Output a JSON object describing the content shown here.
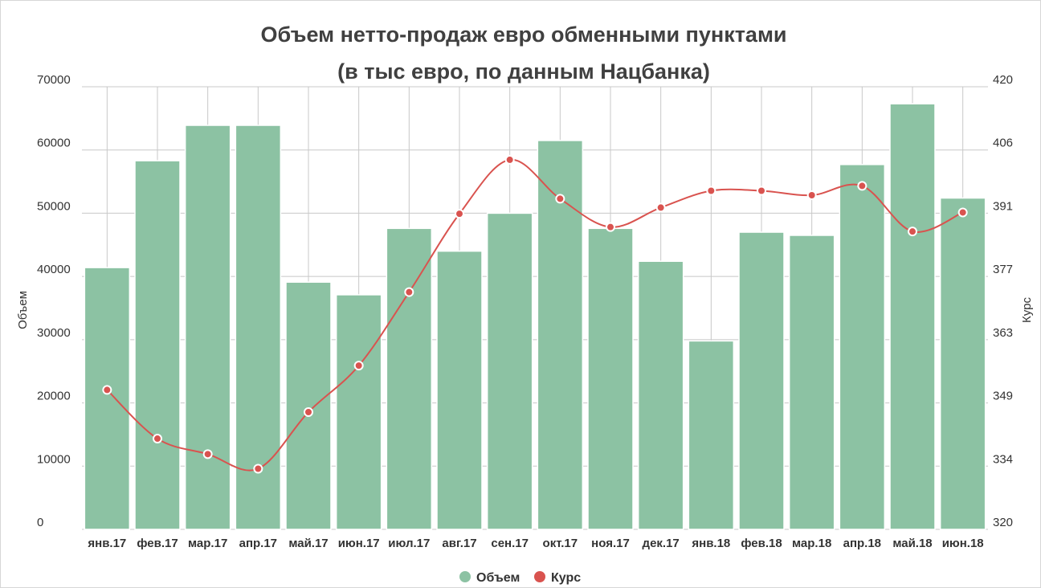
{
  "chart_data": {
    "type": "bar",
    "title_lines": [
      "Объем нетто-продаж евро обменными пунктами",
      "(в тыс евро, по данным Нацбанка)"
    ],
    "categories": [
      "янв.17",
      "фев.17",
      "мар.17",
      "апр.17",
      "май.17",
      "июн.17",
      "июл.17",
      "авг.17",
      "сен.17",
      "окт.17",
      "ноя.17",
      "дек.17",
      "янв.18",
      "фев.18",
      "мар.18",
      "апр.18",
      "май.18",
      "июн.18"
    ],
    "series": [
      {
        "name": "Объем",
        "type": "bar",
        "axis": "left",
        "color": "#8cc2a3",
        "values": [
          41400,
          58300,
          63900,
          63900,
          39100,
          37100,
          47600,
          44000,
          50000,
          61500,
          47600,
          42400,
          29800,
          47000,
          46500,
          57700,
          67300,
          52400
        ]
      },
      {
        "name": "Курс",
        "type": "line",
        "axis": "right",
        "color": "#d9534f",
        "values": [
          351.5,
          340.5,
          337,
          333.7,
          346.5,
          357,
          373.6,
          391.3,
          403.5,
          394.7,
          388.3,
          392.7,
          396.5,
          396.5,
          395.5,
          397.6,
          387.3,
          391.6
        ]
      }
    ],
    "ylabel": "Объем",
    "y2label": "Курс",
    "ylim": [
      0,
      70000
    ],
    "y2lim": [
      320,
      420
    ],
    "yticks": [
      "70000",
      "60000",
      "50000",
      "40000",
      "30000",
      "20000",
      "10000",
      "0"
    ],
    "y2ticks": [
      "420",
      "406",
      "391",
      "377",
      "363",
      "349",
      "334",
      "320"
    ],
    "grid": true,
    "legend_position": "bottom"
  }
}
